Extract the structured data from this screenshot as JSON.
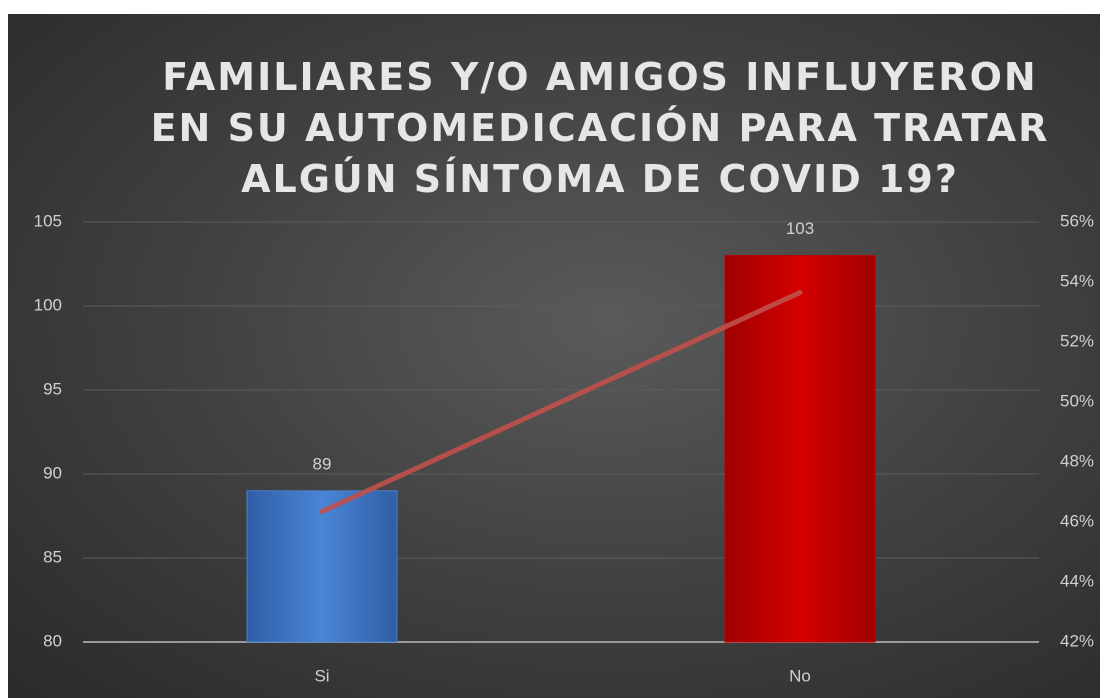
{
  "chart_data": {
    "type": "bar",
    "title": "FAMILIARES Y/O AMIGOS INFLUYERON EN SU AUTOMEDICACIÓN PARA TRATAR ALGÚN SÍNTOMA DE COVID 19?",
    "categories": [
      "Si",
      "No"
    ],
    "series": [
      {
        "type": "bar",
        "colors": [
          "#4a7fcf",
          "#c00000"
        ],
        "values": [
          89,
          103
        ]
      },
      {
        "type": "line",
        "axis": "y2",
        "color": "#c0504d",
        "values": [
          46.35,
          53.65
        ]
      }
    ],
    "ylim": [
      80,
      105
    ],
    "yticks": [
      80,
      85,
      90,
      95,
      100,
      105
    ],
    "y2lim": [
      42,
      56
    ],
    "y2ticks": [
      {
        "value": 42,
        "label": "42%"
      },
      {
        "value": 44,
        "label": "44%"
      },
      {
        "value": 46,
        "label": "46%"
      },
      {
        "value": 48,
        "label": "48%"
      },
      {
        "value": 50,
        "label": "50%"
      },
      {
        "value": 52,
        "label": "52%"
      },
      {
        "value": 54,
        "label": "54%"
      },
      {
        "value": 56,
        "label": "56%"
      }
    ],
    "grid": true
  }
}
